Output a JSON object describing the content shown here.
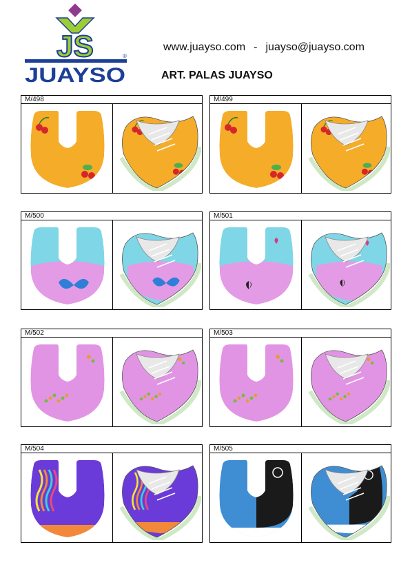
{
  "brand": {
    "monogram": "JS",
    "name": "JUAYSO",
    "registered_mark": "®"
  },
  "header": {
    "website": "www.juayso.com",
    "separator": "-",
    "email": "juayso@juayso.com",
    "title": "ART. PALAS JUAYSO"
  },
  "colors": {
    "brand_blue": "#1d3f98",
    "brand_green": "#9ccd35",
    "brand_purple": "#8e3a8f"
  },
  "articles": [
    {
      "code": "M/498",
      "theme": "cherries",
      "base": "#f5ac28",
      "accent": "#d6262b"
    },
    {
      "code": "M/499",
      "theme": "cherries",
      "base": "#f5ac28",
      "accent": "#d6262b"
    },
    {
      "code": "M/500",
      "theme": "butterflies",
      "base": "#7fd6e6",
      "accent": "#e49be6"
    },
    {
      "code": "M/501",
      "theme": "hearts",
      "base": "#7fd6e6",
      "accent": "#e49be6"
    },
    {
      "code": "M/502",
      "theme": "flowers",
      "base": "#e294e4",
      "accent": "#e49c3c"
    },
    {
      "code": "M/503",
      "theme": "flowers",
      "base": "#e294e4",
      "accent": "#e49c3c"
    },
    {
      "code": "M/504",
      "theme": "waves",
      "base": "#6a3bd8",
      "accent": "#f2893a"
    },
    {
      "code": "M/505",
      "theme": "graphic",
      "base": "#3f8ed4",
      "accent": "#1a1a1a"
    }
  ]
}
